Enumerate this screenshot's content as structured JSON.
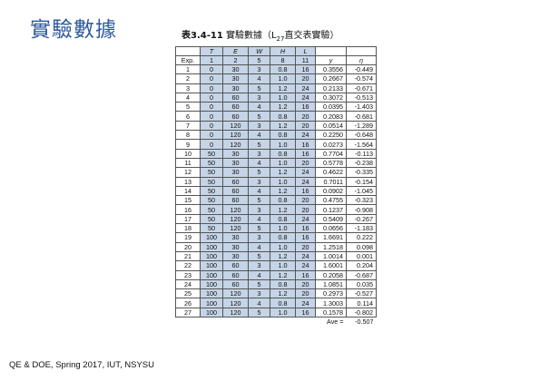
{
  "title": "實驗數據",
  "caption": {
    "number": "表3.4-11",
    "text": "實驗數據（L",
    "sub": "27",
    "tail": "直交表實驗）"
  },
  "columns": {
    "names": [
      "",
      "T",
      "E",
      "W",
      "H",
      "L",
      "",
      ""
    ],
    "codes": [
      "Exp.",
      "1",
      "2",
      "5",
      "8",
      "11",
      "y",
      "η"
    ]
  },
  "rows": [
    [
      "1",
      "0",
      "30",
      "3",
      "0.8",
      "16",
      "0.3556",
      "-0.449"
    ],
    [
      "2",
      "0",
      "30",
      "4",
      "1.0",
      "20",
      "0.2667",
      "-0.574"
    ],
    [
      "3",
      "0",
      "30",
      "5",
      "1.2",
      "24",
      "0.2133",
      "-0.671"
    ],
    [
      "4",
      "0",
      "60",
      "3",
      "1.0",
      "24",
      "0.3072",
      "-0.513"
    ],
    [
      "5",
      "0",
      "60",
      "4",
      "1.2",
      "16",
      "0.0395",
      "-1.403"
    ],
    [
      "6",
      "0",
      "60",
      "5",
      "0.8",
      "20",
      "0.2083",
      "-0.681"
    ],
    [
      "7",
      "0",
      "120",
      "3",
      "1.2",
      "20",
      "0.0514",
      "-1.289"
    ],
    [
      "8",
      "0",
      "120",
      "4",
      "0.8",
      "24",
      "0.2250",
      "-0.648"
    ],
    [
      "9",
      "0",
      "120",
      "5",
      "1.0",
      "16",
      "0.0273",
      "-1.564"
    ],
    [
      "10",
      "50",
      "30",
      "3",
      "0.8",
      "16",
      "0.7704",
      "-0.113"
    ],
    [
      "11",
      "50",
      "30",
      "4",
      "1.0",
      "20",
      "0.5778",
      "-0.238"
    ],
    [
      "12",
      "50",
      "30",
      "5",
      "1.2",
      "24",
      "0.4622",
      "-0.335"
    ],
    [
      "13",
      "50",
      "60",
      "3",
      "1.0",
      "24",
      "0.7011",
      "-0.154"
    ],
    [
      "14",
      "50",
      "60",
      "4",
      "1.2",
      "16",
      "0.0902",
      "-1.045"
    ],
    [
      "15",
      "50",
      "60",
      "5",
      "0.8",
      "20",
      "0.4755",
      "-0.323"
    ],
    [
      "16",
      "50",
      "120",
      "3",
      "1.2",
      "20",
      "0.1237",
      "-0.908"
    ],
    [
      "17",
      "50",
      "120",
      "4",
      "0.8",
      "24",
      "0.5409",
      "-0.267"
    ],
    [
      "18",
      "50",
      "120",
      "5",
      "1.0",
      "16",
      "0.0656",
      "-1.183"
    ],
    [
      "19",
      "100",
      "30",
      "3",
      "0.8",
      "16",
      "1.6691",
      "0.222"
    ],
    [
      "20",
      "100",
      "30",
      "4",
      "1.0",
      "20",
      "1.2518",
      "0.098"
    ],
    [
      "21",
      "100",
      "30",
      "5",
      "1.2",
      "24",
      "1.0014",
      "0.001"
    ],
    [
      "22",
      "100",
      "60",
      "3",
      "1.0",
      "24",
      "1.6001",
      "0.204"
    ],
    [
      "23",
      "100",
      "60",
      "4",
      "1.2",
      "16",
      "0.2058",
      "-0.687"
    ],
    [
      "24",
      "100",
      "60",
      "5",
      "0.8",
      "20",
      "1.0851",
      "0.035"
    ],
    [
      "25",
      "100",
      "120",
      "3",
      "1.2",
      "20",
      "0.2973",
      "-0.527"
    ],
    [
      "26",
      "100",
      "120",
      "4",
      "0.8",
      "24",
      "1.3003",
      "0.114"
    ],
    [
      "27",
      "100",
      "120",
      "5",
      "1.0",
      "16",
      "0.1578",
      "-0.802"
    ]
  ],
  "average": {
    "label": "Ave =",
    "value": "-0.507"
  },
  "footer": "QE & DOE, Spring 2017, IUT, NSYSU"
}
